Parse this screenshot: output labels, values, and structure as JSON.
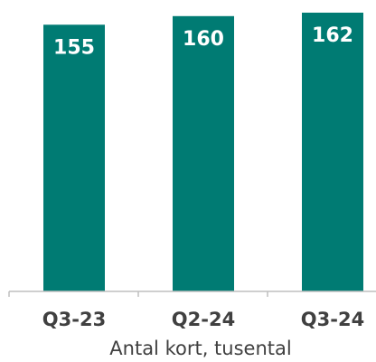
{
  "chart_data": {
    "type": "bar",
    "categories": [
      "Q3-23",
      "Q2-24",
      "Q3-24"
    ],
    "values": [
      155,
      160,
      162
    ],
    "data_labels": [
      "155",
      "160",
      "162"
    ],
    "xlabel": "Antal kort, tusental",
    "ylabel": "",
    "ylim": [
      0,
      162
    ],
    "bar_color": "#007B73",
    "grid": false
  }
}
